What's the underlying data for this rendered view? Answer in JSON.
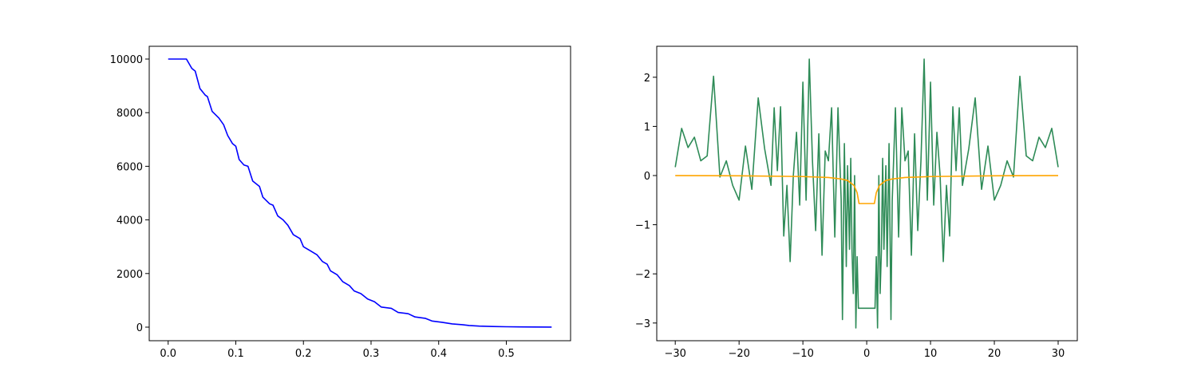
{
  "chart_data": [
    {
      "type": "line",
      "x": [
        0,
        0.027,
        0.035,
        0.04,
        0.047,
        0.055,
        0.058,
        0.065,
        0.075,
        0.082,
        0.088,
        0.095,
        0.1,
        0.105,
        0.112,
        0.118,
        0.125,
        0.135,
        0.14,
        0.15,
        0.155,
        0.162,
        0.17,
        0.177,
        0.185,
        0.195,
        0.2,
        0.21,
        0.22,
        0.228,
        0.235,
        0.24,
        0.25,
        0.258,
        0.268,
        0.275,
        0.285,
        0.295,
        0.305,
        0.315,
        0.33,
        0.34,
        0.355,
        0.365,
        0.38,
        0.39,
        0.405,
        0.42,
        0.435,
        0.445,
        0.46,
        0.48,
        0.5,
        0.52,
        0.54,
        0.567
      ],
      "values": [
        10000,
        10000,
        9650,
        9550,
        8900,
        8650,
        8600,
        8050,
        7800,
        7550,
        7150,
        6850,
        6750,
        6250,
        6050,
        6000,
        5450,
        5250,
        4850,
        4600,
        4550,
        4150,
        4000,
        3800,
        3450,
        3300,
        3000,
        2850,
        2700,
        2450,
        2350,
        2100,
        1950,
        1700,
        1550,
        1350,
        1250,
        1050,
        950,
        750,
        700,
        550,
        500,
        380,
        330,
        230,
        180,
        120,
        90,
        60,
        40,
        25,
        15,
        8,
        5,
        2
      ],
      "color": "#0000ff",
      "xlim": [
        -0.028,
        0.595
      ],
      "ylim": [
        -506,
        10476
      ],
      "xticks": [
        {
          "value": 0,
          "label": "0.0"
        },
        0.1,
        0.2,
        0.3,
        0.4,
        0.5
      ],
      "yticks": [
        0,
        2000,
        4000,
        6000,
        8000,
        10000
      ]
    },
    {
      "type": "line",
      "series": [
        {
          "color": "#2e8b57",
          "x": [
            -30,
            -29,
            -28,
            -27,
            -26,
            -25,
            -24,
            -23,
            -22,
            -21,
            -20,
            -19,
            -18,
            -17,
            -16,
            -15,
            -14.5,
            -14,
            -13.5,
            -13,
            -12.5,
            -12,
            -11.5,
            -11,
            -10.5,
            -10,
            -9.5,
            -9,
            -8.5,
            -8,
            -7.5,
            -7,
            -6.5,
            -6,
            -5.5,
            -5,
            -4.5,
            -4,
            -3.8,
            -3.5,
            -3.2,
            -3,
            -2.7,
            -2.5,
            -2.3,
            -2.1,
            -1.9,
            -1.7,
            -1.5,
            -1.3,
            1.3,
            1.5,
            1.7,
            1.9,
            2.1,
            2.3,
            2.5,
            2.7,
            3,
            3.2,
            3.5,
            3.8,
            4,
            4.5,
            5,
            5.5,
            6,
            6.5,
            7,
            7.5,
            8,
            8.5,
            9,
            9.5,
            10,
            10.5,
            11,
            11.5,
            12,
            12.5,
            13,
            13.5,
            14,
            14.5,
            15,
            16,
            17,
            18,
            19,
            20,
            21,
            22,
            23,
            24,
            25,
            26,
            27,
            28,
            29,
            30
          ],
          "values": [
            0.17,
            0.96,
            0.57,
            0.78,
            0.3,
            0.4,
            2.02,
            -0.03,
            0.3,
            -0.2,
            -0.5,
            0.6,
            -0.28,
            1.58,
            0.55,
            -0.2,
            1.38,
            0.1,
            1.4,
            -1.23,
            -0.2,
            -1.75,
            0.0,
            0.88,
            -0.6,
            1.9,
            -0.5,
            2.37,
            0.3,
            -1.12,
            0.85,
            -1.62,
            0.5,
            0.3,
            1.38,
            -1.25,
            1.38,
            -0.5,
            -2.93,
            0.65,
            -1.85,
            0.2,
            -1.5,
            0.35,
            -1.55,
            -2.4,
            0.0,
            -3.1,
            -1.65,
            -2.7,
            -2.7,
            -1.65,
            -3.1,
            0.0,
            -2.4,
            -1.55,
            0.35,
            -1.5,
            0.2,
            -1.85,
            0.65,
            -2.93,
            -0.5,
            1.38,
            -1.25,
            1.38,
            0.3,
            0.5,
            -1.62,
            0.85,
            -1.12,
            0.3,
            2.37,
            -0.5,
            1.9,
            -0.6,
            0.88,
            0.0,
            -1.75,
            -0.2,
            -1.23,
            1.4,
            0.1,
            1.38,
            -0.2,
            0.55,
            1.58,
            -0.28,
            0.6,
            -0.5,
            -0.2,
            0.3,
            -0.03,
            2.02,
            0.4,
            0.3,
            0.78,
            0.57,
            0.96,
            0.17
          ]
        },
        {
          "color": "#ffa500",
          "x": [
            -30,
            -20,
            -10,
            -6,
            -4,
            -3,
            -2,
            -1.5,
            -1.2,
            1.2,
            1.5,
            2,
            3,
            4,
            6,
            10,
            20,
            30
          ],
          "values": [
            0,
            -0.005,
            -0.02,
            -0.04,
            -0.07,
            -0.1,
            -0.2,
            -0.35,
            -0.57,
            -0.57,
            -0.35,
            -0.2,
            -0.1,
            -0.07,
            -0.04,
            -0.02,
            -0.005,
            0
          ]
        }
      ],
      "xlim": [
        -32.9,
        33
      ],
      "ylim": [
        -3.36,
        2.63
      ],
      "xticks": [
        {
          "value": -30,
          "label": "−30"
        },
        {
          "value": -20,
          "label": "−20"
        },
        {
          "value": -10,
          "label": "−10"
        },
        0,
        10,
        20,
        30
      ],
      "yticks": [
        {
          "value": -3,
          "label": "−3"
        },
        {
          "value": -2,
          "label": "−2"
        },
        {
          "value": -1,
          "label": "−1"
        },
        0,
        1,
        2
      ]
    }
  ]
}
